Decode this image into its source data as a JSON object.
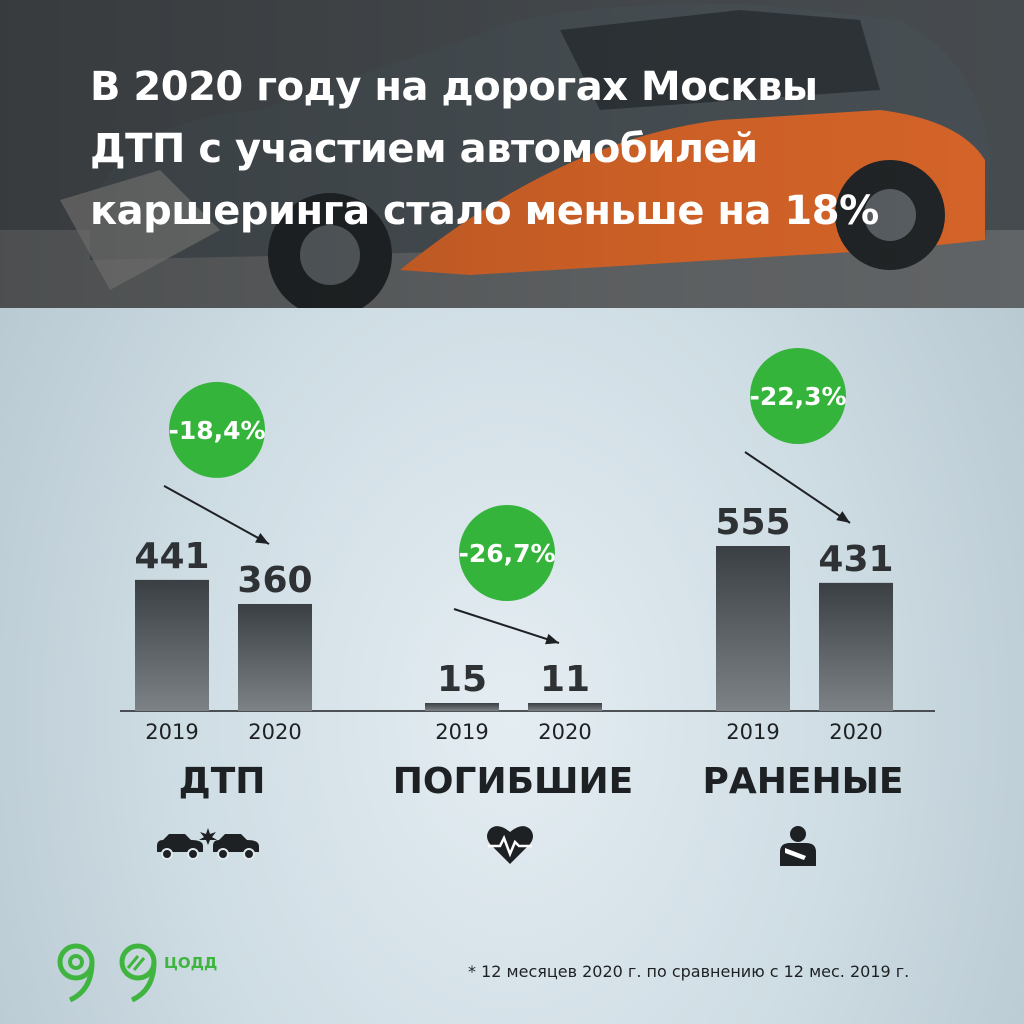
{
  "headline": {
    "line1": "В 2020 году на дорогах Москвы",
    "line2": "ДТП с участием автомобилей",
    "line3": "каршеринга стало меньше на 18%"
  },
  "colors": {
    "accent": "#35b43c",
    "bar": "#3a3f43",
    "text": "#1e2124"
  },
  "chart_data": {
    "type": "bar",
    "groups": [
      {
        "category": "ДТП",
        "icon": "car-crash-icon",
        "change_label": "-18,4%",
        "bars": [
          {
            "year": "2019",
            "value": 441
          },
          {
            "year": "2020",
            "value": 360
          }
        ]
      },
      {
        "category": "ПОГИБШИЕ",
        "icon": "heartbeat-icon",
        "change_label": "-26,7%",
        "bars": [
          {
            "year": "2019",
            "value": 15
          },
          {
            "year": "2020",
            "value": 11
          }
        ]
      },
      {
        "category": "РАНЕНЫЕ",
        "icon": "injured-person-icon",
        "change_label": "-22,3%",
        "bars": [
          {
            "year": "2019",
            "value": 555
          },
          {
            "year": "2020",
            "value": 431
          }
        ]
      }
    ],
    "ylim": [
      0,
      555
    ]
  },
  "footnote": "* 12 месяцев 2020 г. по сравнению с 12 мес. 2019 г.",
  "logo": {
    "text": "ЦОДД",
    "icon": "codd-logo-icon"
  }
}
